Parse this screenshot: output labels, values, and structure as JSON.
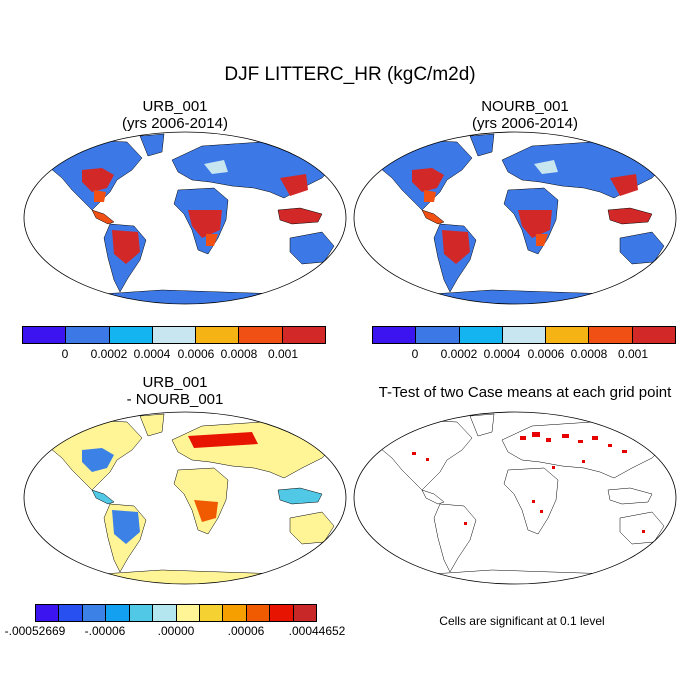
{
  "title": "DJF LITTERC_HR (kgC/m2d)",
  "panels": [
    {
      "title_line1": "URB_001",
      "title_line2": "(yrs 2006-2014)"
    },
    {
      "title_line1": "NOURB_001",
      "title_line2": "(yrs 2006-2014)"
    },
    {
      "title_line1": "URB_001",
      "title_line2": "- NOURB_001"
    },
    {
      "title_line1": "T-Test of two Case means at each grid point",
      "title_line2": ""
    }
  ],
  "colorbar_top": {
    "colors": [
      "#3c14f0",
      "#3c78e6",
      "#14b4f0",
      "#c8e6f0",
      "#f5b414",
      "#f05014",
      "#d22828"
    ],
    "labels": [
      "0",
      "0.0002",
      "0.0004",
      "0.0006",
      "0.0008",
      "0.001"
    ]
  },
  "colorbar_diff": {
    "colors": [
      "#3c14f0",
      "#2850f0",
      "#3c82e6",
      "#14a0f0",
      "#50c8e6",
      "#b4e6f0",
      "#fff596",
      "#f5d232",
      "#f5a000",
      "#f05a00",
      "#e61400",
      "#c82828"
    ],
    "labels": [
      "-.00052669",
      "-.00006",
      ".00000",
      ".00006",
      ".00044652"
    ]
  },
  "significance_note": "Cells are significant at 0.1 level",
  "colors": {
    "ocean": "#ffffff",
    "land_blue": "#3c78e6",
    "hot_red": "#d22828",
    "warm_orange": "#f05014",
    "diff_yellow": "#fff596",
    "sig_red": "#e60000"
  }
}
